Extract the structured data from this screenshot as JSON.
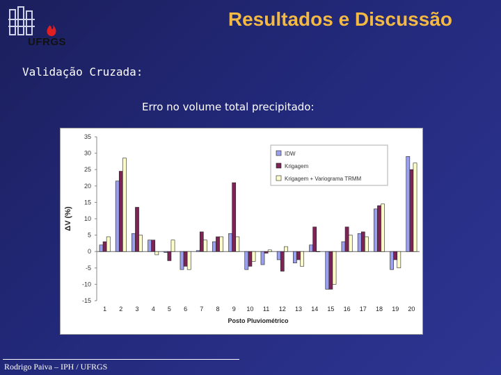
{
  "header": {
    "logo_text": "UFRGS",
    "title": "Resultados e Discussão"
  },
  "subtitle": "Validação Cruzada:",
  "chart_caption": "Erro no volume total precipitado:",
  "footer": "Rodrigo Paiva – IPH / UFRGS",
  "colors": {
    "title": "#f4b942",
    "series_idw": "#9aa0ee",
    "series_krigagem": "#7d2456",
    "series_krig_trmm": "#ffffcc"
  },
  "chart_data": {
    "type": "bar",
    "categories": [
      "1",
      "2",
      "3",
      "4",
      "5",
      "6",
      "7",
      "8",
      "9",
      "10",
      "11",
      "12",
      "13",
      "14",
      "15",
      "16",
      "17",
      "18",
      "19",
      "20"
    ],
    "series": [
      {
        "name": "IDW",
        "values": [
          2,
          21.5,
          5.5,
          3.5,
          -0.3,
          -5.5,
          0.3,
          3,
          5.5,
          -5.5,
          -4,
          -2.5,
          -3.5,
          2,
          -11.5,
          3,
          5.5,
          13,
          -5.5,
          29
        ]
      },
      {
        "name": "Krigagem",
        "values": [
          3,
          24.5,
          13.5,
          3.5,
          -2.8,
          -4.5,
          6,
          4.5,
          21,
          -4.5,
          -0.5,
          -6,
          -2.5,
          7.5,
          -11.5,
          7.5,
          6,
          14,
          -2.5,
          25
        ]
      },
      {
        "name": "Krigagem + Variograma TRMM",
        "values": [
          4.5,
          28.5,
          5,
          -1,
          3.5,
          -5.5,
          3.5,
          4.5,
          4.5,
          -3,
          0.5,
          1.5,
          -4.5,
          0,
          -10,
          5,
          4.5,
          14.5,
          -5,
          27
        ]
      }
    ],
    "ylabel": "ΔV (%)",
    "xlabel": "Posto Pluviométrico",
    "ylim": [
      -15,
      35
    ],
    "yticks": [
      35,
      30,
      25,
      20,
      15,
      10,
      5,
      0,
      -5,
      -10,
      -15
    ],
    "legend_position": "top-right",
    "grid": false
  }
}
